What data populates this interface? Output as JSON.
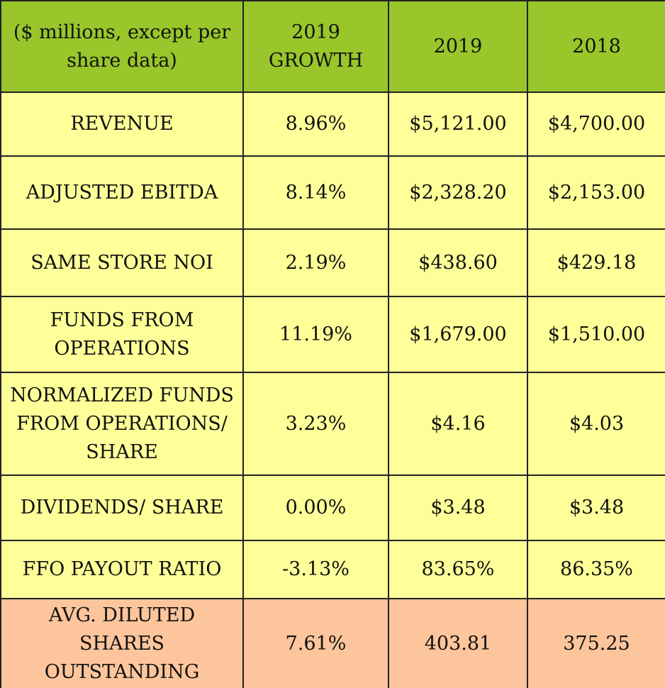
{
  "colors": {
    "header_bg": "#99c62a",
    "row_bg": "#ffff99",
    "highlight_row_bg": "#fcc59b",
    "border": "#222222"
  },
  "header": {
    "label_line1": "($ millions, except per",
    "label_line2": "share data)",
    "growth_line1": "2019",
    "growth_line2": "GROWTH",
    "year1": "2019",
    "year2": "2018"
  },
  "rows": [
    {
      "label_lines": [
        "REVENUE"
      ],
      "growth": "8.96%",
      "v2019": "$5,121.00",
      "v2018": "$4,700.00"
    },
    {
      "label_lines": [
        "ADJUSTED EBITDA"
      ],
      "growth": "8.14%",
      "v2019": "$2,328.20",
      "v2018": "$2,153.00"
    },
    {
      "label_lines": [
        "SAME STORE NOI"
      ],
      "growth": "2.19%",
      "v2019": "$438.60",
      "v2018": "$429.18"
    },
    {
      "label_lines": [
        "FUNDS FROM",
        "OPERATIONS"
      ],
      "growth": "11.19%",
      "v2019": "$1,679.00",
      "v2018": "$1,510.00"
    },
    {
      "label_lines": [
        "NORMALIZED FUNDS",
        "FROM OPERATIONS/",
        "SHARE"
      ],
      "growth": "3.23%",
      "v2019": "$4.16",
      "v2018": "$4.03"
    },
    {
      "label_lines": [
        "DIVIDENDS/ SHARE"
      ],
      "growth": "0.00%",
      "v2019": "$3.48",
      "v2018": "$3.48"
    },
    {
      "label_lines": [
        "FFO PAYOUT RATIO"
      ],
      "growth": "-3.13%",
      "v2019": "83.65%",
      "v2018": "86.35%"
    },
    {
      "label_lines": [
        "AVG. DILUTED SHARES",
        "OUTSTANDING"
      ],
      "growth": "7.61%",
      "v2019": "403.81",
      "v2018": "375.25"
    }
  ]
}
